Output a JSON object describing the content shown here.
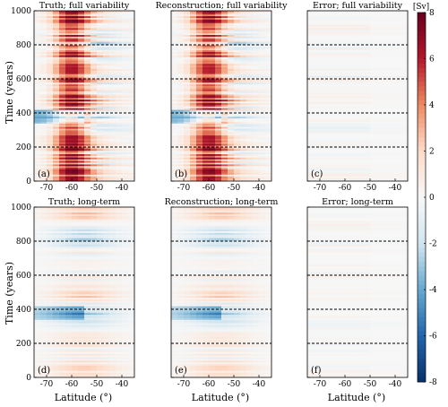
{
  "chart_data": {
    "type": "heatmap",
    "colorbar": {
      "unit": "[Sv]",
      "range": [
        -8,
        8
      ],
      "ticks": [
        8,
        6,
        4,
        2,
        0,
        -2,
        -4,
        -6,
        -8
      ],
      "colors": [
        "#08306b",
        "#2166ac",
        "#67a9cf",
        "#d1e5f0",
        "#f7f7f7",
        "#fddbc7",
        "#ef8a62",
        "#b2182b",
        "#67001f"
      ]
    },
    "x_range": [
      -75,
      -35
    ],
    "y_range": [
      0,
      1000
    ],
    "xlabel": "Latitude (°)",
    "ylabel": "Time (years)",
    "x_ticks": [
      -70,
      -60,
      -50,
      -40
    ],
    "y_ticks": [
      0,
      200,
      400,
      600,
      800,
      1000
    ],
    "reference_lines_years": [
      200,
      400,
      600,
      800
    ],
    "panels": [
      {
        "letter": "(a)",
        "title": "Truth; full variability",
        "kind": "full",
        "amp": 1.0
      },
      {
        "letter": "(b)",
        "title": "Reconstruction; full variability",
        "kind": "full",
        "amp": 0.95
      },
      {
        "letter": "(c)",
        "title": "Error; full variability",
        "kind": "error",
        "amp": 0.8
      },
      {
        "letter": "(d)",
        "title": "Truth; long-term",
        "kind": "long",
        "amp": 1.0
      },
      {
        "letter": "(e)",
        "title": "Reconstruction; long-term",
        "kind": "long",
        "amp": 0.95
      },
      {
        "letter": "(f)",
        "title": "Error; long-term",
        "kind": "error",
        "amp": 0.6
      }
    ]
  }
}
